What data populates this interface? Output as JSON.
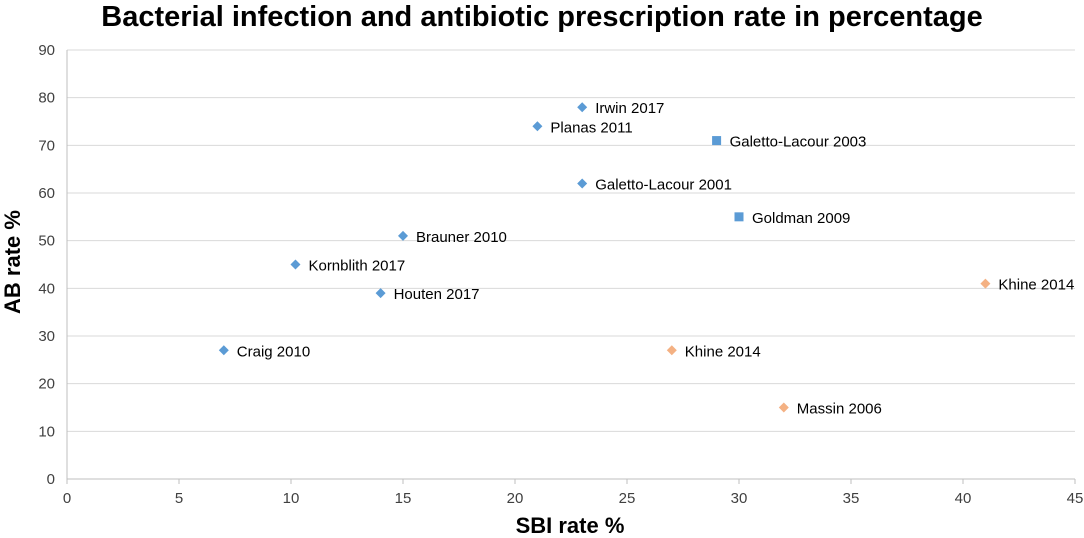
{
  "chart_data": {
    "type": "scatter",
    "title": "Bacterial infection and antibiotic prescription rate in percentage",
    "xlabel": "SBI rate %",
    "ylabel": "AB rate %",
    "xlim": [
      0,
      45
    ],
    "ylim": [
      0,
      90
    ],
    "xticks": [
      0,
      5,
      10,
      15,
      20,
      25,
      30,
      35,
      40,
      45
    ],
    "yticks": [
      0,
      10,
      20,
      30,
      40,
      50,
      60,
      70,
      80,
      90
    ],
    "grid": true,
    "series": [
      {
        "name": "blue-diamonds",
        "marker": "diamond",
        "color": "#5b9bd5",
        "points": [
          {
            "x": 7,
            "y": 27,
            "label": "Craig 2010"
          },
          {
            "x": 10.2,
            "y": 45,
            "label": "Kornblith 2017"
          },
          {
            "x": 14,
            "y": 39,
            "label": "Houten 2017"
          },
          {
            "x": 15,
            "y": 51,
            "label": "Brauner 2010"
          },
          {
            "x": 21,
            "y": 74,
            "label": "Planas 2011"
          },
          {
            "x": 23,
            "y": 78,
            "label": "Irwin 2017"
          },
          {
            "x": 23,
            "y": 62,
            "label": "Galetto-Lacour 2001"
          }
        ]
      },
      {
        "name": "blue-squares",
        "marker": "square",
        "color": "#5b9bd5",
        "points": [
          {
            "x": 29,
            "y": 71,
            "label": "Galetto-Lacour 2003"
          },
          {
            "x": 30,
            "y": 55,
            "label": "Goldman 2009"
          }
        ]
      },
      {
        "name": "orange-diamonds",
        "marker": "diamond",
        "color": "#f4b183",
        "points": [
          {
            "x": 27,
            "y": 27,
            "label": "Khine 2014"
          },
          {
            "x": 32,
            "y": 15,
            "label": "Massin 2006"
          },
          {
            "x": 41,
            "y": 41,
            "label": "Khine 2014"
          }
        ]
      }
    ]
  }
}
